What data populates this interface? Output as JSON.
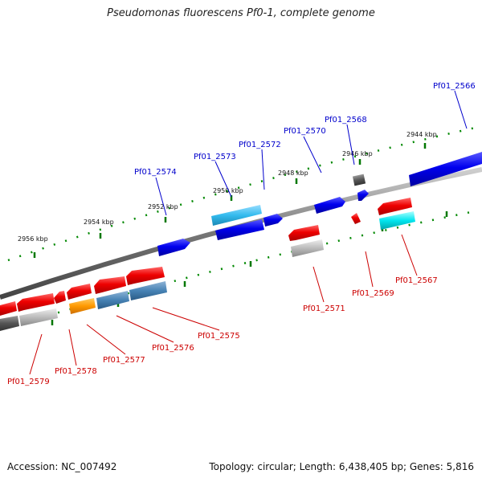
{
  "title": "Pseudomonas fluorescens Pf0-1, complete genome",
  "footer": {
    "accession": "Accession: NC_007492",
    "summary": "Topology: circular; Length: 6,438,405 bp; Genes: 5,816"
  },
  "scale_ticks": [
    {
      "label": "2956 kbp"
    },
    {
      "label": "2954 kbp"
    },
    {
      "label": "2952 kbp"
    },
    {
      "label": "2950 kbp"
    },
    {
      "label": "2948 kbp"
    },
    {
      "label": "2946 kbp"
    },
    {
      "label": "2944 kbp"
    }
  ],
  "genes": [
    {
      "name": "Pf01_2566",
      "strand": "forward",
      "color": "#0000cc"
    },
    {
      "name": "Pf01_2567",
      "strand": "reverse",
      "color": "#cc0000"
    },
    {
      "name": "Pf01_2568",
      "strand": "forward",
      "color": "#0000cc"
    },
    {
      "name": "Pf01_2569",
      "strand": "reverse",
      "color": "#cc0000"
    },
    {
      "name": "Pf01_2570",
      "strand": "forward",
      "color": "#0000cc"
    },
    {
      "name": "Pf01_2571",
      "strand": "reverse",
      "color": "#cc0000"
    },
    {
      "name": "Pf01_2572",
      "strand": "forward",
      "color": "#0000cc"
    },
    {
      "name": "Pf01_2573",
      "strand": "forward",
      "color": "#0000cc"
    },
    {
      "name": "Pf01_2574",
      "strand": "forward",
      "color": "#0000cc"
    },
    {
      "name": "Pf01_2575",
      "strand": "reverse",
      "color": "#cc0000"
    },
    {
      "name": "Pf01_2576",
      "strand": "reverse",
      "color": "#cc0000"
    },
    {
      "name": "Pf01_2577",
      "strand": "reverse",
      "color": "#cc0000"
    },
    {
      "name": "Pf01_2578",
      "strand": "reverse",
      "color": "#cc0000"
    },
    {
      "name": "Pf01_2579",
      "strand": "reverse",
      "color": "#cc0000"
    }
  ],
  "colors": {
    "forward_gene": "#0000ee",
    "reverse_gene": "#ee0000",
    "backbone": "#777777",
    "scale": "#007700",
    "forward_label": "#0000cc",
    "reverse_label": "#cc0000",
    "cog_cyan": "#00e5ee",
    "cog_lightblue": "#33bbee",
    "cog_steelblue": "#4682b4",
    "cog_orange": "#ff9900",
    "cog_gray": "#aaaaaa",
    "cog_darkgray": "#555555"
  }
}
